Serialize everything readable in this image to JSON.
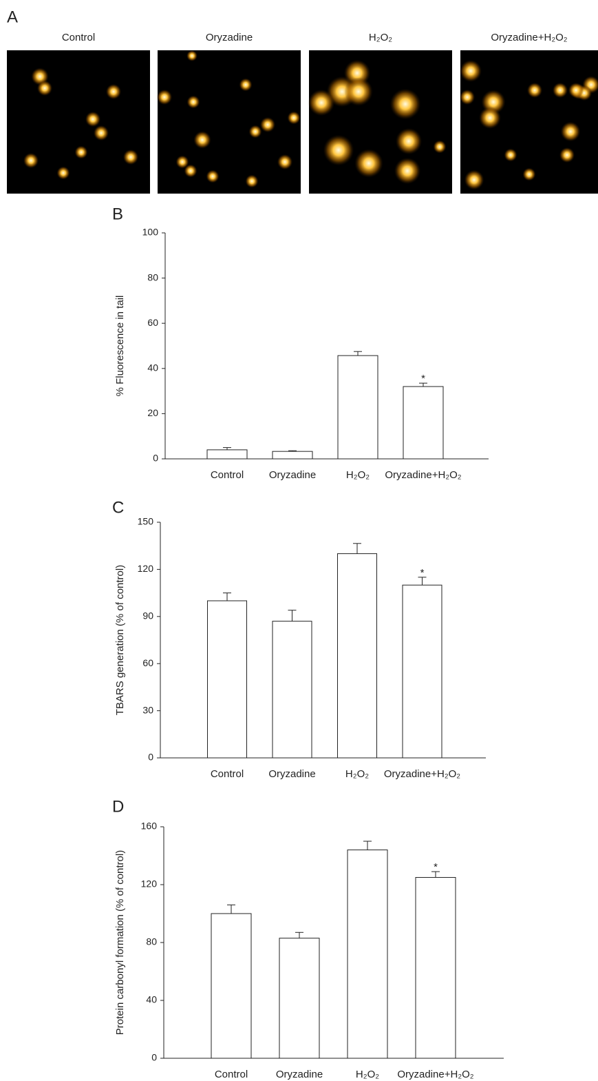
{
  "images": {
    "label": "A",
    "titles": [
      "Control",
      "Oryzadine",
      "H₂O₂",
      "Oryzadine+H₂O₂"
    ]
  },
  "chart_data": [
    {
      "type": "bar",
      "label": "B",
      "y_label": "% Fluorescence in tail",
      "categories": [
        "Control",
        "Oryzadine",
        "H₂O₂",
        "Oryzadine+H₂O₂"
      ],
      "values": [
        4,
        3.3,
        45.7,
        32
      ],
      "errors": [
        1,
        0.3,
        1.8,
        1.5
      ],
      "significance": [
        null,
        null,
        null,
        "*"
      ],
      "color": "#ffffff",
      "ylim": [
        0,
        100
      ],
      "yticks": [
        0,
        20,
        40,
        60,
        80,
        100
      ]
    },
    {
      "type": "bar",
      "label": "C",
      "y_label": "TBARS generation (% of control)",
      "categories": [
        "Control",
        "Oryzadine",
        "H₂O₂",
        "Oryzadine+H₂O₂"
      ],
      "values": [
        100,
        87,
        130,
        110
      ],
      "errors": [
        5,
        7,
        6.5,
        5
      ],
      "significance": [
        null,
        null,
        null,
        "*"
      ],
      "color": "#ffffff",
      "ylim": [
        0,
        150
      ],
      "yticks": [
        0,
        30,
        60,
        90,
        120,
        150
      ]
    },
    {
      "type": "bar",
      "label": "D",
      "y_label": "Protein carbonyl formation (% of control)",
      "categories": [
        "Control",
        "Oryzadine",
        "H₂O₂",
        "Oryzadine+H₂O₂"
      ],
      "values": [
        100,
        83,
        144,
        125
      ],
      "errors": [
        6,
        4,
        6,
        4
      ],
      "significance": [
        null,
        null,
        null,
        "*"
      ],
      "color": "#ffffff",
      "ylim": [
        0,
        160
      ],
      "yticks": [
        0,
        40,
        80,
        120,
        160
      ]
    }
  ]
}
